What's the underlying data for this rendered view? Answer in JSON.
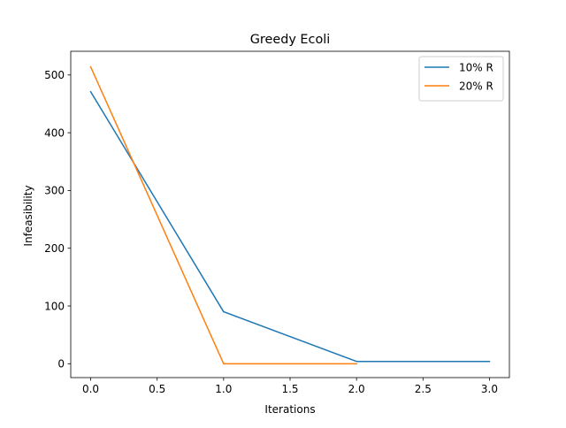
{
  "chart_data": {
    "type": "line",
    "title": "Greedy Ecoli",
    "xlabel": "Iterations",
    "ylabel": "Infeasibility",
    "xlim": [
      -0.15,
      3.15
    ],
    "ylim": [
      -24,
      541
    ],
    "xticks": [
      0.0,
      0.5,
      1.0,
      1.5,
      2.0,
      2.5,
      3.0
    ],
    "xtick_labels": [
      "0.0",
      "0.5",
      "1.0",
      "1.5",
      "2.0",
      "2.5",
      "3.0"
    ],
    "yticks": [
      0,
      100,
      200,
      300,
      400,
      500
    ],
    "ytick_labels": [
      "0",
      "100",
      "200",
      "300",
      "400",
      "500"
    ],
    "grid": false,
    "legend_position": "upper right",
    "series": [
      {
        "name": "10% R",
        "color": "#1f77b4",
        "x": [
          0,
          1,
          2,
          3
        ],
        "y": [
          471,
          90,
          4,
          4
        ]
      },
      {
        "name": "20% R",
        "color": "#ff7f0e",
        "x": [
          0,
          1,
          2
        ],
        "y": [
          514,
          0,
          0
        ]
      }
    ]
  }
}
